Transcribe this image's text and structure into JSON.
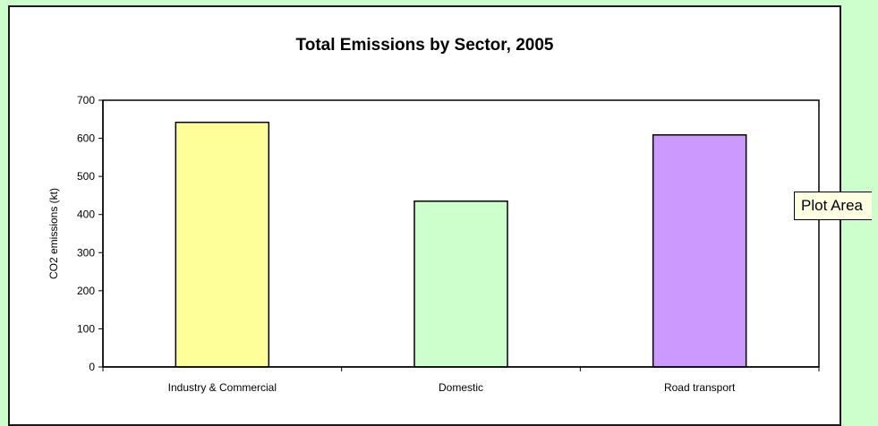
{
  "tooltip": {
    "text": "Plot Area"
  },
  "colors": {
    "background": "#ccffcc",
    "chart_area": "#ffffff",
    "bar_industry": "#ffff99",
    "bar_domestic": "#ccffcc",
    "bar_road": "#cc99ff"
  },
  "chart_data": {
    "type": "bar",
    "title": "Total Emissions by Sector, 2005",
    "xlabel": "",
    "ylabel": "CO2 emissions (kt)",
    "ylim": [
      0,
      700
    ],
    "yticks": [
      0,
      100,
      200,
      300,
      400,
      500,
      600,
      700
    ],
    "categories": [
      "Industry & Commercial",
      "Domestic",
      "Road transport"
    ],
    "values": [
      642,
      435,
      609
    ],
    "bar_colors": [
      "#ffff99",
      "#ccffcc",
      "#cc99ff"
    ],
    "grid": false,
    "legend": "none"
  }
}
